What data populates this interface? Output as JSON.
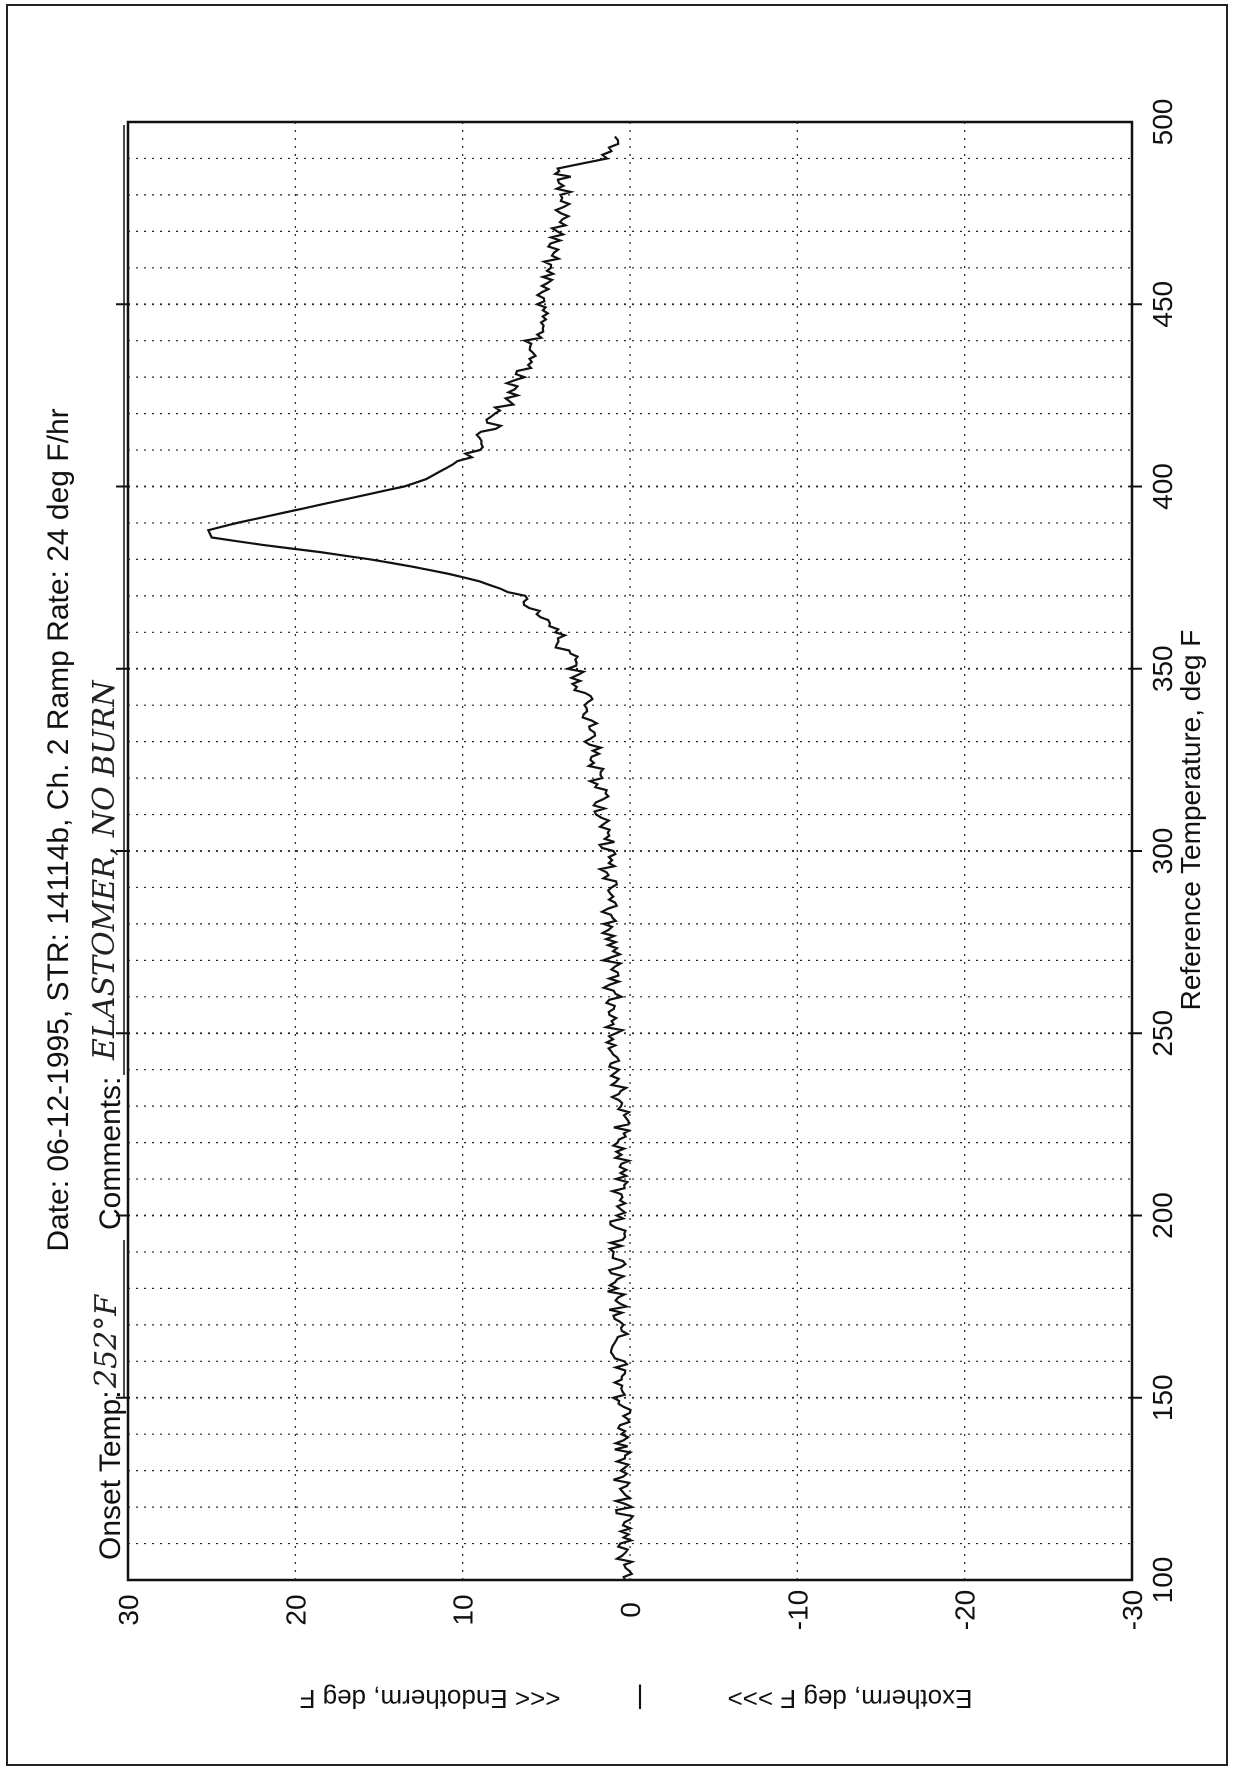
{
  "chart_data": {
    "type": "line",
    "orientation": "rotated-90-ccw",
    "header": {
      "line1": "Date: 06-12-1995, STR: 14114b, Ch. 2    Ramp Rate: 24 deg F/hr",
      "onset_label": "Onset Temp:",
      "onset_value": "252°F",
      "comments_label": "Comments:",
      "comments_value": "ELASTOMER, NO BURN"
    },
    "xlabel": "Reference Temperature, deg F",
    "ylabel_exo": "Exotherm, deg F >>>",
    "ylabel_sep": "|",
    "ylabel_endo": "<<< Endotherm, deg F",
    "xlim": [
      100,
      500
    ],
    "ylim": [
      -30,
      30
    ],
    "x_ticks": [
      "100",
      "150",
      "200",
      "250",
      "300",
      "350",
      "400",
      "450",
      "500"
    ],
    "y_ticks": [
      "30",
      "20",
      "10",
      "0",
      "-10",
      "-20",
      "-30"
    ],
    "grid": true,
    "series": [
      {
        "x": [
          100,
          110,
          120,
          130,
          140,
          150,
          160,
          170,
          180,
          190,
          200,
          210,
          220,
          230,
          240,
          250,
          260,
          270,
          280,
          290,
          300,
          310,
          320,
          330,
          340,
          345,
          350,
          355,
          360,
          365,
          370,
          372,
          374,
          376,
          378,
          380,
          382,
          384,
          386,
          388,
          390,
          392,
          394,
          396,
          398,
          400,
          402,
          404,
          406,
          408,
          410,
          415,
          420,
          425,
          430,
          435,
          440,
          445,
          450,
          455,
          460,
          465,
          470,
          475,
          480,
          485,
          488,
          490,
          492,
          494,
          496
        ],
        "y": [
          0.3,
          0.4,
          0.3,
          0.5,
          0.4,
          0.5,
          0.6,
          0.7,
          0.8,
          0.8,
          0.8,
          0.7,
          0.5,
          0.6,
          0.7,
          0.9,
          1.0,
          1.1,
          1.2,
          1.3,
          1.4,
          1.6,
          1.9,
          2.2,
          2.6,
          2.9,
          3.3,
          3.8,
          4.5,
          5.5,
          6.8,
          7.8,
          9.0,
          10.8,
          13.0,
          15.5,
          18.5,
          22.0,
          25.0,
          25.2,
          23.5,
          21.5,
          19.5,
          17.5,
          15.5,
          13.5,
          12.2,
          11.4,
          10.6,
          10.0,
          9.4,
          8.5,
          7.8,
          7.2,
          6.7,
          6.2,
          5.8,
          5.5,
          5.2,
          5.0,
          4.8,
          4.6,
          4.4,
          4.2,
          4.1,
          4.0,
          3.8,
          1.5,
          0.9,
          0.8,
          0.9
        ]
      }
    ]
  },
  "colors": {
    "line": "#111111",
    "grid": "#333333",
    "frame": "#111111"
  }
}
